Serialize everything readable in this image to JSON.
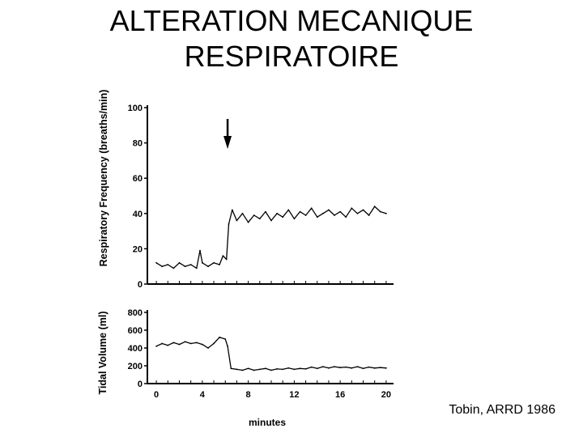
{
  "slide": {
    "title_line1": "ALTERATION MECANIQUE",
    "title_line2": "RESPIRATOIRE",
    "caption": "Tobin, ARRD 1986"
  },
  "chart_data": [
    {
      "type": "line",
      "ylabel": "Respiratory Frequency (breaths/min)",
      "ylim": [
        0,
        100
      ],
      "yticks": [
        0,
        20,
        40,
        60,
        80,
        100
      ],
      "xlim": [
        -0.5,
        20.5
      ],
      "annotation": "downward arrow marking the intervention at about 6 minutes",
      "arrow_x": 6.2,
      "series": [
        {
          "values": [
            [
              0,
              12
            ],
            [
              0.5,
              10
            ],
            [
              1,
              11
            ],
            [
              1.5,
              9
            ],
            [
              2,
              12
            ],
            [
              2.5,
              10
            ],
            [
              3,
              11
            ],
            [
              3.5,
              9
            ],
            [
              3.8,
              19
            ],
            [
              4,
              12
            ],
            [
              4.5,
              10
            ],
            [
              5,
              12
            ],
            [
              5.5,
              11
            ],
            [
              5.8,
              16
            ],
            [
              6.1,
              14
            ],
            [
              6.3,
              34
            ],
            [
              6.6,
              42
            ],
            [
              7,
              36
            ],
            [
              7.5,
              40
            ],
            [
              8,
              35
            ],
            [
              8.5,
              39
            ],
            [
              9,
              37
            ],
            [
              9.5,
              41
            ],
            [
              10,
              36
            ],
            [
              10.5,
              40
            ],
            [
              11,
              38
            ],
            [
              11.5,
              42
            ],
            [
              12,
              37
            ],
            [
              12.5,
              41
            ],
            [
              13,
              39
            ],
            [
              13.5,
              43
            ],
            [
              14,
              38
            ],
            [
              14.5,
              40
            ],
            [
              15,
              42
            ],
            [
              15.5,
              39
            ],
            [
              16,
              41
            ],
            [
              16.5,
              38
            ],
            [
              17,
              43
            ],
            [
              17.5,
              40
            ],
            [
              18,
              42
            ],
            [
              18.5,
              39
            ],
            [
              19,
              44
            ],
            [
              19.5,
              41
            ],
            [
              20,
              40
            ]
          ]
        }
      ]
    },
    {
      "type": "line",
      "ylabel": "Tidal Volume (ml)",
      "xlabel": "minutes",
      "ylim": [
        0,
        800
      ],
      "yticks": [
        0,
        200,
        400,
        600,
        800
      ],
      "xlim": [
        -0.5,
        20.5
      ],
      "xticks": [
        0,
        4,
        8,
        12,
        16,
        20
      ],
      "series": [
        {
          "values": [
            [
              0,
              420
            ],
            [
              0.5,
              450
            ],
            [
              1,
              430
            ],
            [
              1.5,
              460
            ],
            [
              2,
              440
            ],
            [
              2.5,
              470
            ],
            [
              3,
              450
            ],
            [
              3.5,
              460
            ],
            [
              4,
              440
            ],
            [
              4.5,
              400
            ],
            [
              5,
              450
            ],
            [
              5.5,
              520
            ],
            [
              6,
              500
            ],
            [
              6.2,
              420
            ],
            [
              6.5,
              170
            ],
            [
              7,
              160
            ],
            [
              7.5,
              150
            ],
            [
              8,
              170
            ],
            [
              8.5,
              150
            ],
            [
              9,
              160
            ],
            [
              9.5,
              170
            ],
            [
              10,
              150
            ],
            [
              10.5,
              165
            ],
            [
              11,
              160
            ],
            [
              11.5,
              175
            ],
            [
              12,
              160
            ],
            [
              12.5,
              170
            ],
            [
              13,
              165
            ],
            [
              13.5,
              185
            ],
            [
              14,
              170
            ],
            [
              14.5,
              190
            ],
            [
              15,
              175
            ],
            [
              15.5,
              190
            ],
            [
              16,
              180
            ],
            [
              16.5,
              185
            ],
            [
              17,
              175
            ],
            [
              17.5,
              190
            ],
            [
              18,
              170
            ],
            [
              18.5,
              185
            ],
            [
              19,
              175
            ],
            [
              19.5,
              180
            ],
            [
              20,
              175
            ]
          ]
        }
      ]
    }
  ]
}
